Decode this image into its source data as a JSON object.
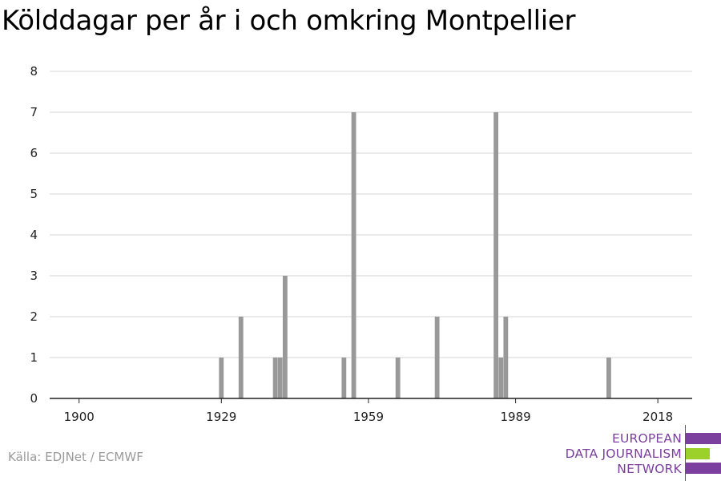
{
  "title": "Kölddagar per år i och omkring Montpellier",
  "source": "Källa: EDJNet / ECMWF",
  "logo": {
    "lines": [
      "EUROPEAN",
      "DATA JOURNALISM",
      "NETWORK"
    ],
    "colors": {
      "purple": "#7b3f9e",
      "green": "#9bd12a"
    }
  },
  "chart_data": {
    "type": "bar",
    "title": "Kölddagar per år i och omkring Montpellier",
    "xlabel": "",
    "ylabel": "",
    "xlim": [
      1894,
      2025
    ],
    "ylim": [
      0,
      8
    ],
    "x_ticks": [
      1900,
      1929,
      1959,
      1989,
      2018
    ],
    "y_ticks": [
      0,
      1,
      2,
      3,
      4,
      5,
      6,
      7,
      8
    ],
    "grid": true,
    "bar_color": "#999999",
    "x": [
      1929,
      1933,
      1940,
      1941,
      1942,
      1954,
      1956,
      1965,
      1973,
      1985,
      1986,
      1987,
      2008
    ],
    "values": [
      1,
      2,
      1,
      1,
      3,
      1,
      7,
      1,
      2,
      7,
      1,
      2,
      1
    ]
  }
}
